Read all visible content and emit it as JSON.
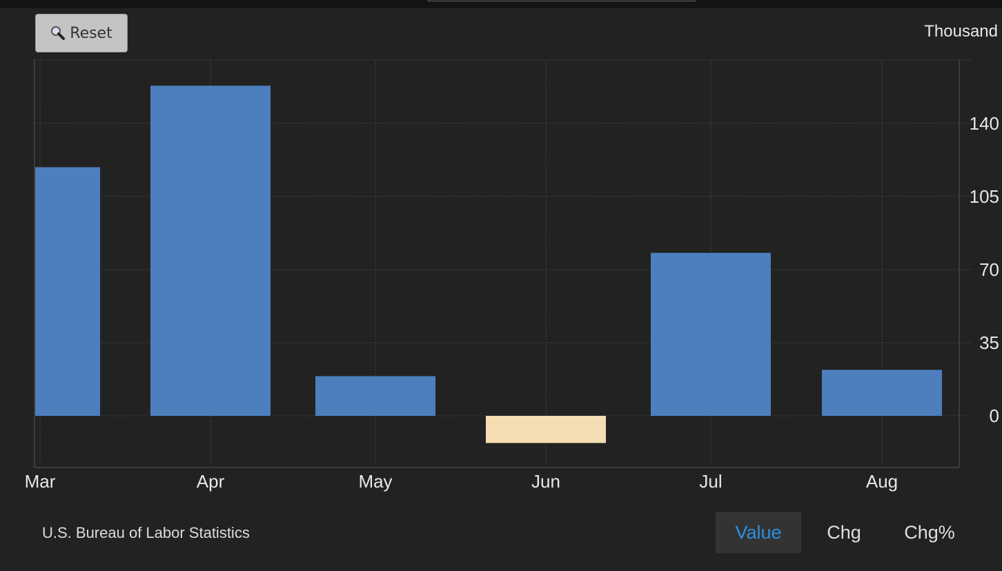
{
  "toolbar": {
    "reset_label": "Reset",
    "reset_icon": "magnifier-icon"
  },
  "unit_label": "Thousand",
  "source": "U.S. Bureau of Labor Statistics",
  "view_buttons": [
    {
      "label": "Value",
      "active": true
    },
    {
      "label": "Chg",
      "active": false
    },
    {
      "label": "Chg%",
      "active": false
    }
  ],
  "chart_data": {
    "type": "bar",
    "categories": [
      "Mar",
      "Apr",
      "May",
      "Jun",
      "Jul",
      "Aug"
    ],
    "values": [
      119,
      158,
      19,
      -13,
      78,
      22
    ],
    "ylabel": "Thousand",
    "ylim": [
      -24,
      170
    ],
    "yticks": [
      0,
      35,
      70,
      105,
      140
    ],
    "y_axis_position": "right",
    "grid": true,
    "colors": {
      "positive": "#4d7fbe",
      "negative": "#f5deb3",
      "background": "#222222"
    }
  }
}
